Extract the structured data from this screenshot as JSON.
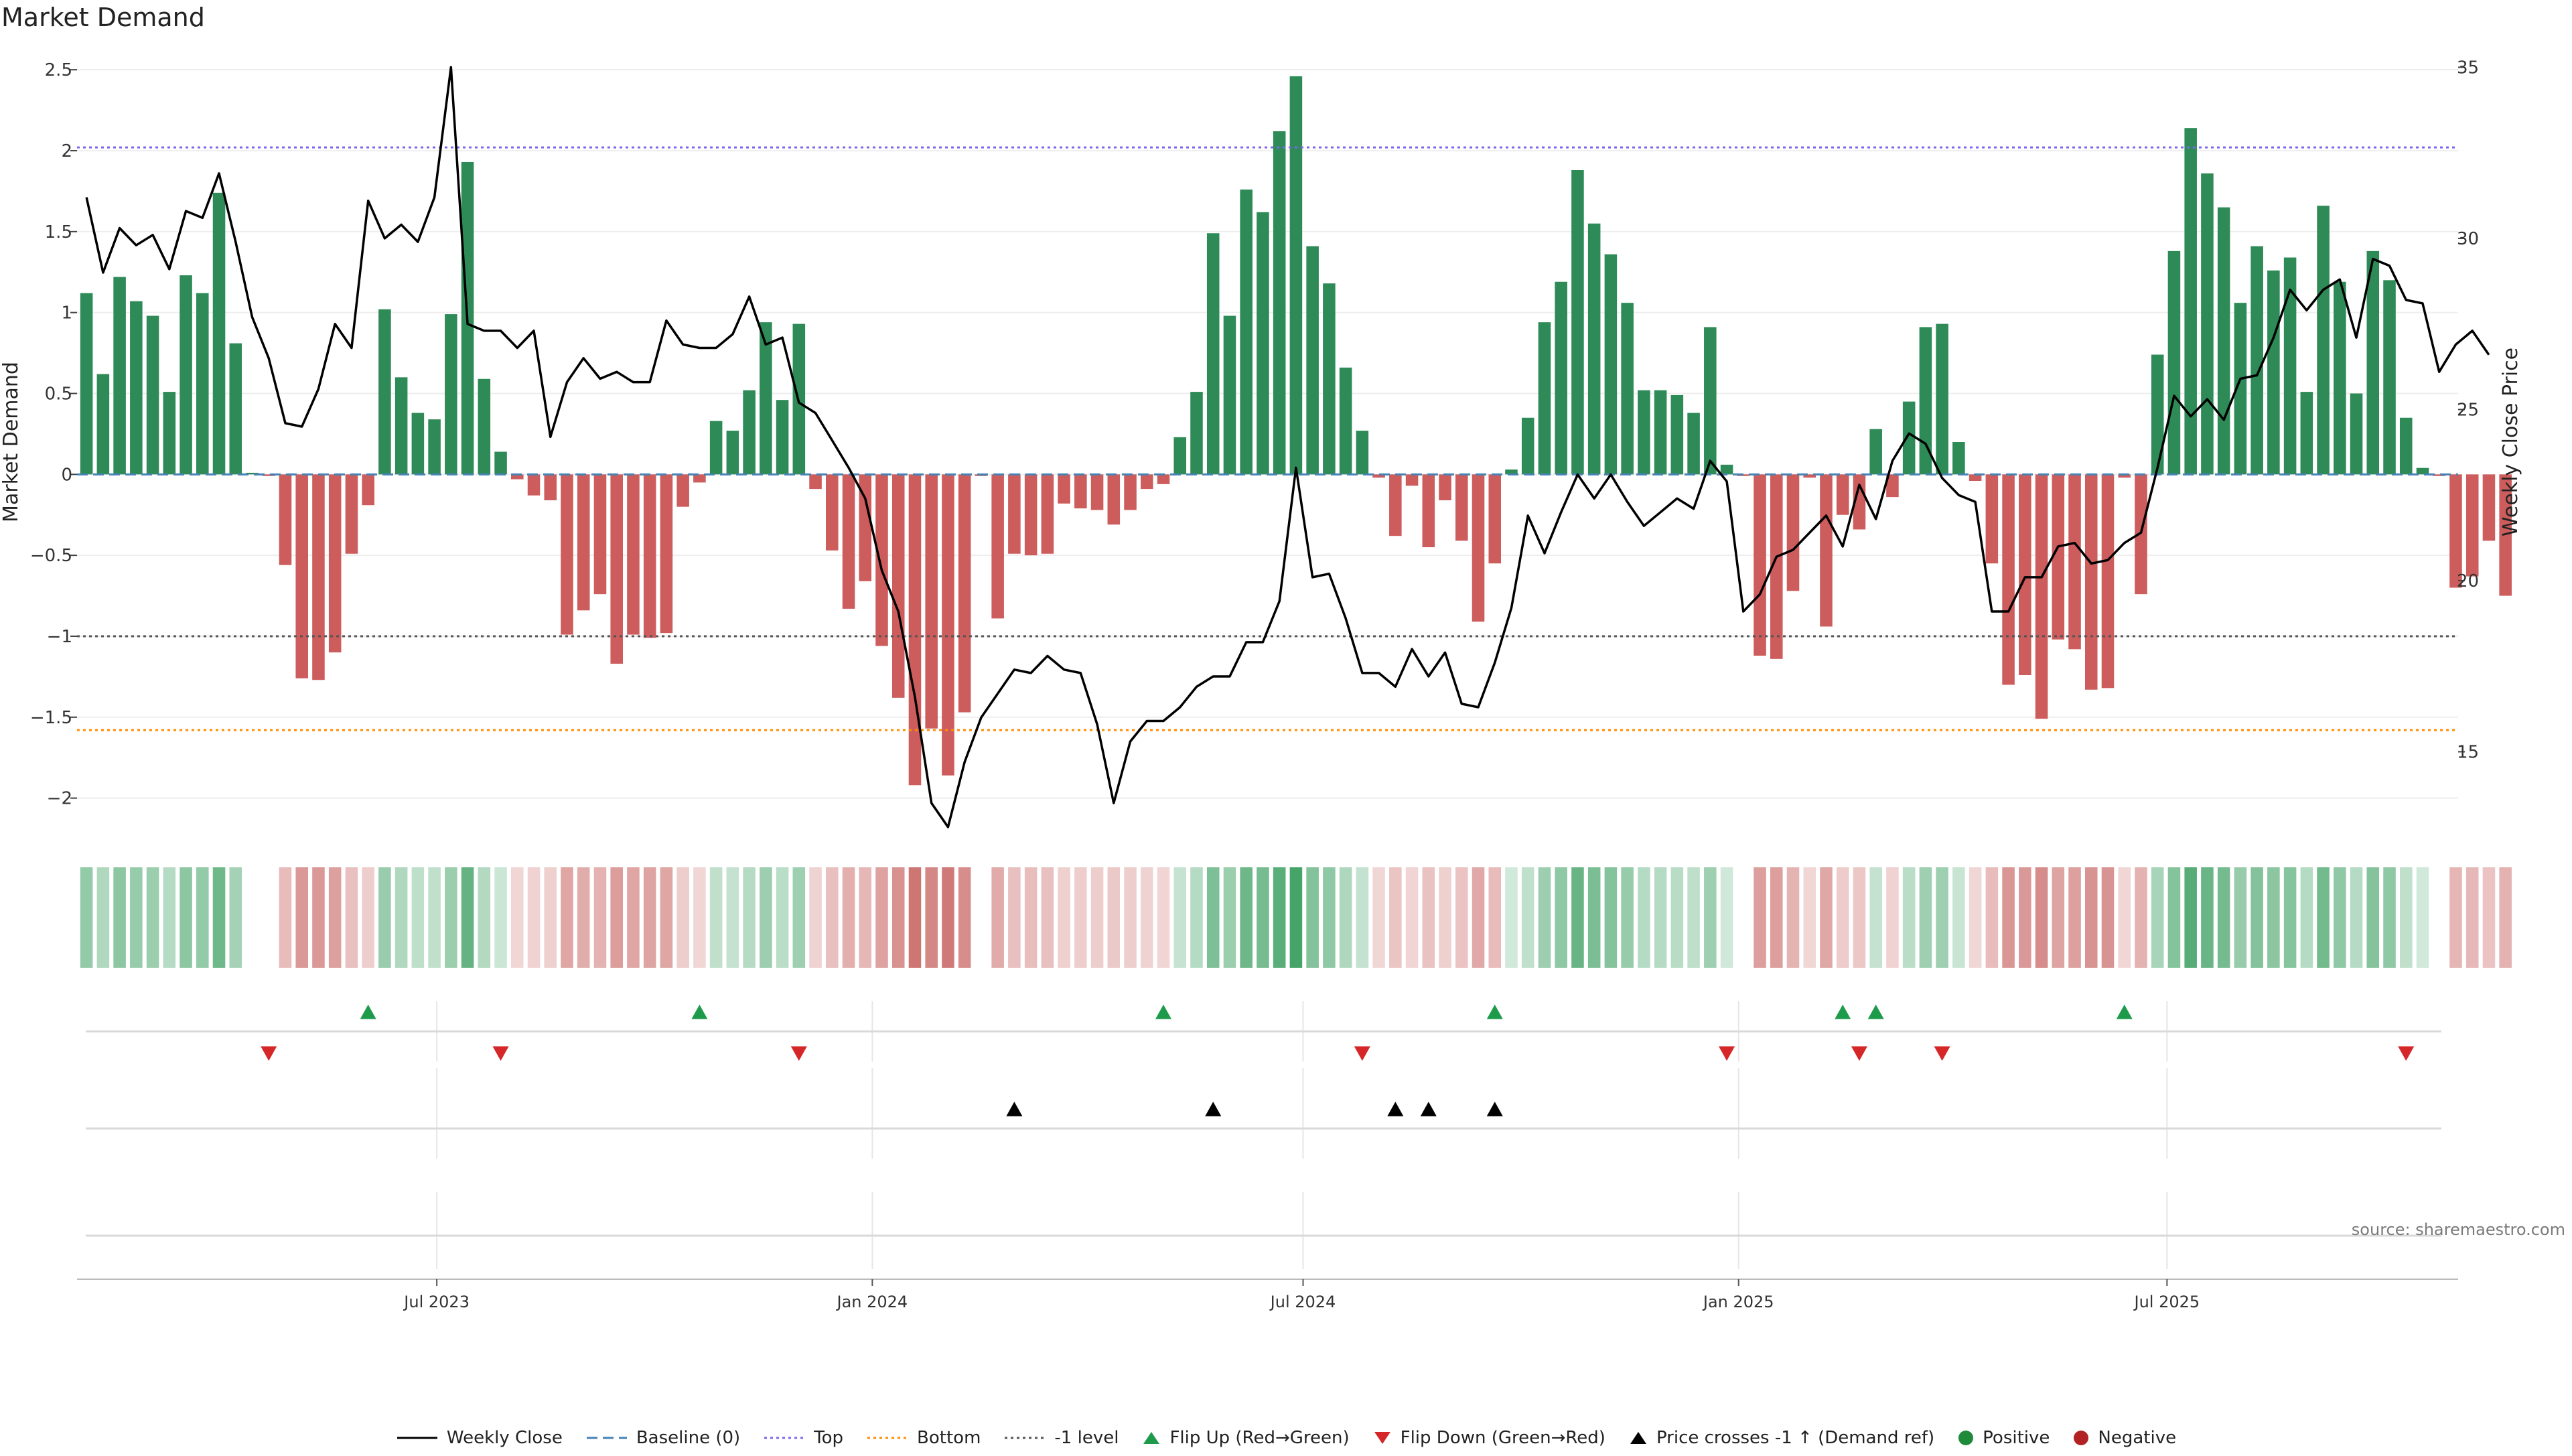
{
  "title": "Market Demand",
  "source": "source: sharemaestro.com",
  "legend": {
    "weekly_close": "Weekly Close",
    "baseline": "Baseline (0)",
    "top": "Top",
    "bottom": "Bottom",
    "minus1": "-1 level",
    "flip_up": "Flip Up (Red→Green)",
    "flip_down": "Flip Down (Green→Red)",
    "price_cross": "Price crosses -1 ↑ (Demand ref)",
    "positive": "Positive",
    "negative": "Negative"
  },
  "colors": {
    "positive": "#2e8b57",
    "negative": "#cd5c5c",
    "price": "#000000",
    "baseline": "#4682b4",
    "top": "#7b68ee",
    "bottom": "#ff8c00",
    "minus1": "#555555",
    "flip_up": "#1e9a4b",
    "flip_down": "#d62728",
    "cross": "#000000"
  },
  "chart_data": {
    "type": "bar",
    "title": "Market Demand",
    "ylabel": "Market Demand",
    "y2label": "Weekly Close Price",
    "ylim": [
      -2.2,
      2.6
    ],
    "y2lim": [
      12.7,
      35.4
    ],
    "yticks": [
      2.5,
      2,
      1.5,
      1,
      0.5,
      0,
      -0.5,
      -1,
      -1.5,
      -2
    ],
    "yticklabels": [
      "2.5",
      "2",
      "1.5",
      "1",
      "0.5",
      "0",
      "−0.5",
      "−1",
      "−1.5",
      "−2"
    ],
    "y2ticks": [
      35,
      30,
      25,
      20,
      15
    ],
    "y2ticklabels": [
      "35",
      "30",
      "25",
      "20",
      "15"
    ],
    "x_start": "2023-03-05",
    "week_step_days": 7,
    "xlim_days": [
      -4,
      1002
    ],
    "xticks": [
      {
        "label": "Jul 2023",
        "day": 148
      },
      {
        "label": "Jan 2024",
        "day": 332
      },
      {
        "label": "Jul 2024",
        "day": 514
      },
      {
        "label": "Jan 2025",
        "day": 698
      },
      {
        "label": "Jul 2025",
        "day": 879
      }
    ],
    "thresholds": {
      "baseline": 0,
      "top": 2.02,
      "bottom": -1.58,
      "minus1": -1
    },
    "demand": [
      1.12,
      0.62,
      1.22,
      1.07,
      0.98,
      0.51,
      1.23,
      1.12,
      1.74,
      0.81,
      0.01,
      -0.01,
      -0.56,
      -1.26,
      -1.27,
      -1.1,
      -0.49,
      -0.19,
      1.02,
      0.6,
      0.38,
      0.34,
      0.99,
      1.93,
      0.59,
      0.14,
      -0.03,
      -0.13,
      -0.16,
      -0.99,
      -0.84,
      -0.74,
      -1.17,
      -0.99,
      -1.01,
      -0.98,
      -0.2,
      -0.05,
      0.33,
      0.27,
      0.52,
      0.94,
      0.46,
      0.93,
      -0.09,
      -0.47,
      -0.83,
      -0.66,
      -1.06,
      -1.38,
      -1.92,
      -1.57,
      -1.86,
      -1.47,
      -0.01,
      -0.89,
      -0.49,
      -0.5,
      -0.49,
      -0.18,
      -0.21,
      -0.22,
      -0.31,
      -0.22,
      -0.09,
      -0.06,
      0.23,
      0.51,
      1.49,
      0.98,
      1.76,
      1.62,
      2.12,
      2.46,
      1.41,
      1.18,
      0.66,
      0.27,
      -0.02,
      -0.38,
      -0.07,
      -0.45,
      -0.16,
      -0.41,
      -0.91,
      -0.55,
      0.03,
      0.35,
      0.94,
      1.19,
      1.88,
      1.55,
      1.36,
      1.06,
      0.52,
      0.52,
      0.49,
      0.38,
      0.91,
      0.06,
      -0.01,
      -1.12,
      -1.14,
      -0.72,
      -0.02,
      -0.94,
      -0.25,
      -0.34,
      0.28,
      -0.14,
      0.45,
      0.91,
      0.93,
      0.2,
      -0.04,
      -0.55,
      -1.3,
      -1.24,
      -1.51,
      -1.02,
      -1.08,
      -1.33,
      -1.32,
      -0.02,
      -0.74,
      0.74,
      1.38,
      2.14,
      1.86,
      1.65,
      1.06,
      1.41,
      1.26,
      1.34,
      0.51,
      1.66,
      1.19,
      0.5,
      1.38,
      1.2,
      0.35,
      0.04,
      -0.01,
      -0.7,
      -0.63,
      -0.41,
      -0.75
    ],
    "weekly_close": [
      31.2,
      29.0,
      30.3,
      29.8,
      30.1,
      29.1,
      30.8,
      30.6,
      31.9,
      29.9,
      27.7,
      26.5,
      24.6,
      24.5,
      25.6,
      27.5,
      26.8,
      31.1,
      30.0,
      30.4,
      29.9,
      31.2,
      35.0,
      27.5,
      27.3,
      27.3,
      26.8,
      27.3,
      24.2,
      25.8,
      26.5,
      25.9,
      26.1,
      25.8,
      25.8,
      27.6,
      26.9,
      26.8,
      26.8,
      27.2,
      28.3,
      26.9,
      27.1,
      25.2,
      24.9,
      24.1,
      23.3,
      22.4,
      20.3,
      19.1,
      16.6,
      13.5,
      12.8,
      14.7,
      16.0,
      16.7,
      17.4,
      17.3,
      17.8,
      17.4,
      17.3,
      15.8,
      13.5,
      15.3,
      15.9,
      15.9,
      16.3,
      16.9,
      17.2,
      17.2,
      18.2,
      18.2,
      19.4,
      23.3,
      20.1,
      20.2,
      18.9,
      17.3,
      17.3,
      16.9,
      18.0,
      17.2,
      17.9,
      16.4,
      16.3,
      17.6,
      19.2,
      21.9,
      20.8,
      22.0,
      23.1,
      22.4,
      23.1,
      22.3,
      21.6,
      22.0,
      22.4,
      22.1,
      23.5,
      22.9,
      19.1,
      19.6,
      20.7,
      20.9,
      21.4,
      21.9,
      21.0,
      22.8,
      21.8,
      23.5,
      24.3,
      24.0,
      23.0,
      22.5,
      22.3,
      19.1,
      19.1,
      20.1,
      20.1,
      21.0,
      21.1,
      20.5,
      20.6,
      21.1,
      21.4,
      23.3,
      25.4,
      24.8,
      25.3,
      24.7,
      25.9,
      26.0,
      27.1,
      28.5,
      27.9,
      28.5,
      28.8,
      27.1,
      29.4,
      29.2,
      28.2,
      28.1,
      26.1,
      26.9,
      27.3,
      26.6
    ],
    "flip_up_weeks": [
      17,
      37,
      65,
      85,
      106,
      108,
      123
    ],
    "flip_down_weeks": [
      11,
      25,
      43,
      77,
      99,
      107,
      112,
      140
    ],
    "price_cross_weeks": [
      56,
      68,
      79,
      81,
      85
    ]
  }
}
